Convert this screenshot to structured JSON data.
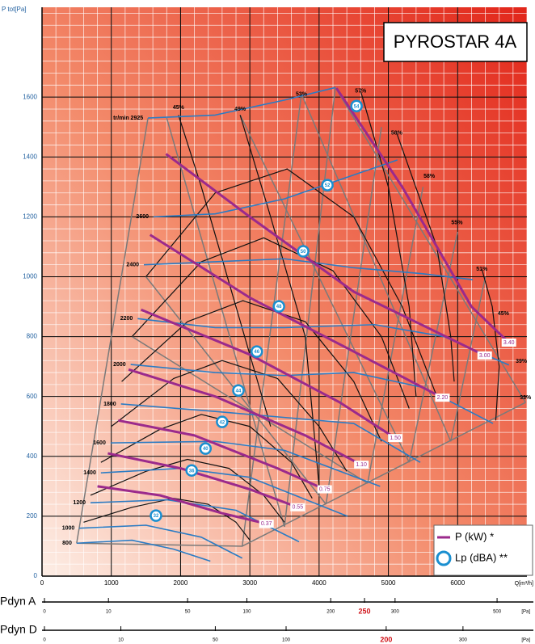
{
  "chart_data": {
    "type": "line",
    "title": "PYROSTAR 4A",
    "y_label": "P tot[Pa]",
    "x_label": "Q[m³/h]",
    "xlim": [
      0,
      7000
    ],
    "ylim": [
      0,
      1900
    ],
    "xticks": [
      0,
      1000,
      2000,
      3000,
      4000,
      5000,
      6000
    ],
    "yticks": [
      0,
      200,
      400,
      600,
      800,
      1000,
      1200,
      1400,
      1600
    ],
    "grid": true,
    "series": [
      {
        "name": "tr/min 2925",
        "color": "#2b7cc4",
        "x": [
          1530,
          2500,
          3500,
          4235
        ],
        "values": [
          1530,
          1540,
          1590,
          1632
        ]
      },
      {
        "name": "2600",
        "color": "#2b7cc4",
        "x": [
          1610,
          2500,
          3500,
          4500,
          5130
        ],
        "values": [
          1200,
          1210,
          1260,
          1340,
          1390
        ]
      },
      {
        "name": "2400",
        "color": "#2b7cc4",
        "x": [
          1470,
          2500,
          3500,
          4500,
          5500,
          6220
        ],
        "values": [
          1040,
          1050,
          1060,
          1030,
          1010,
          990
        ]
      },
      {
        "name": "2200",
        "color": "#2b7cc4",
        "x": [
          1380,
          2500,
          3500,
          4800,
          5800,
          6740
        ],
        "values": [
          860,
          830,
          830,
          840,
          800,
          705
        ]
      },
      {
        "name": "2000",
        "color": "#2b7cc4",
        "x": [
          1280,
          2500,
          3500,
          4500,
          5500,
          6510
        ],
        "values": [
          707,
          680,
          670,
          680,
          630,
          510
        ]
      },
      {
        "name": "1800",
        "color": "#2b7cc4",
        "x": [
          1140,
          2500,
          3500,
          4500,
          5460
        ],
        "values": [
          575,
          550,
          530,
          510,
          380
        ]
      },
      {
        "name": "1600",
        "color": "#2b7cc4",
        "x": [
          990,
          2500,
          3500,
          4880
        ],
        "values": [
          445,
          450,
          420,
          300
        ]
      },
      {
        "name": "1400",
        "color": "#2b7cc4",
        "x": [
          850,
          2000,
          3000,
          4410
        ],
        "values": [
          345,
          360,
          330,
          200
        ]
      },
      {
        "name": "1200",
        "color": "#2b7cc4",
        "x": [
          700,
          1800,
          2800,
          3710
        ],
        "values": [
          245,
          255,
          220,
          115
        ]
      },
      {
        "name": "1000",
        "color": "#2b7cc4",
        "x": [
          540,
          1500,
          2300,
          2890
        ],
        "values": [
          160,
          170,
          130,
          60
        ]
      },
      {
        "name": "800",
        "color": "#2b7cc4",
        "x": [
          500,
          1300,
          1900,
          2430
        ],
        "values": [
          110,
          120,
          90,
          50
        ]
      }
    ],
    "power_legend": "P (kW) *",
    "power": [
      {
        "name": "0.37",
        "color": "#9b2a8c",
        "x": [
          800,
          1700,
          2600,
          3240
        ],
        "values": [
          300,
          270,
          210,
          175
        ]
      },
      {
        "name": "0.55",
        "color": "#9b2a8c",
        "x": [
          950,
          2000,
          3000,
          3690
        ],
        "values": [
          410,
          360,
          290,
          230
        ]
      },
      {
        "name": "0.75",
        "color": "#9b2a8c",
        "x": [
          1100,
          2200,
          3400,
          4080
        ],
        "values": [
          520,
          470,
          360,
          290
        ]
      },
      {
        "name": "1.10",
        "color": "#9b2a8c",
        "x": [
          1250,
          2500,
          3800,
          4610
        ],
        "values": [
          690,
          600,
          470,
          372
        ]
      },
      {
        "name": "1.50",
        "color": "#9b2a8c",
        "x": [
          1430,
          3000,
          4300,
          5100
        ],
        "values": [
          890,
          740,
          580,
          461
        ]
      },
      {
        "name": "2.20",
        "color": "#9b2a8c",
        "x": [
          1560,
          3000,
          4500,
          5780
        ],
        "values": [
          1140,
          930,
          750,
          596
        ]
      },
      {
        "name": "3.00",
        "color": "#9b2a8c",
        "x": [
          1790,
          3000,
          4500,
          6390
        ],
        "values": [
          1410,
          1200,
          950,
          737
        ]
      },
      {
        "name": "3.40",
        "color": "#9b2a8c",
        "x": [
          4250,
          5200,
          6200,
          6740
        ],
        "values": [
          1630,
          1300,
          900,
          780
        ]
      }
    ],
    "lp": {
      "name": "Lp (dBA) **",
      "color": "#1a8fd0",
      "x": [
        1645,
        2160,
        2360,
        2600,
        2835,
        3100,
        3420,
        3770,
        4120,
        4540
      ],
      "y": [
        202,
        353,
        426,
        515,
        620,
        750,
        901,
        1085,
        1306,
        1570
      ],
      "levels": [
        32,
        36,
        40,
        42,
        44,
        46,
        48,
        50,
        52,
        54
      ]
    },
    "efficiency": {
      "x": [
        1970,
        2860,
        3745,
        4600,
        5120,
        5590,
        5990,
        6350,
        6660,
        6920,
        6980
      ],
      "y": [
        1565,
        1560,
        1610,
        1620,
        1480,
        1335,
        1180,
        1025,
        877,
        718,
        596
      ],
      "labels": [
        "45%",
        "49%",
        "53%",
        "57%",
        "58%",
        "58%",
        "55%",
        "51%",
        "45%",
        "39%",
        "33%"
      ]
    },
    "curves": [
      {
        "x": [
          1500,
          2500,
          3540,
          4500,
          5200,
          5700
        ],
        "y": [
          1000,
          1280,
          1360,
          1200,
          900,
          600
        ]
      },
      {
        "x": [
          1300,
          2300,
          3200,
          4200,
          4900,
          5300
        ],
        "y": [
          800,
          1050,
          1130,
          1020,
          800,
          560
        ]
      },
      {
        "x": [
          1150,
          2100,
          2900,
          3800,
          4500,
          4900
        ],
        "y": [
          650,
          850,
          920,
          850,
          650,
          450
        ]
      },
      {
        "x": [
          1000,
          1900,
          2600,
          3400,
          4000,
          4400
        ],
        "y": [
          500,
          660,
          720,
          660,
          500,
          350
        ]
      },
      {
        "x": [
          850,
          1700,
          2300,
          3000,
          3600,
          3900
        ],
        "y": [
          380,
          490,
          540,
          500,
          380,
          260
        ]
      },
      {
        "x": [
          700,
          1500,
          2100,
          2700,
          3200,
          3500
        ],
        "y": [
          270,
          350,
          390,
          360,
          270,
          180
        ]
      },
      {
        "x": [
          600,
          1300,
          1900,
          2400,
          2800,
          3000
        ],
        "y": [
          180,
          230,
          260,
          240,
          180,
          120
        ]
      },
      {
        "x": [
          1970,
          2300,
          2800,
          3300
        ],
        "y": [
          1540,
          1300,
          900,
          500
        ]
      },
      {
        "x": [
          2860,
          3300,
          3800,
          4000
        ],
        "y": [
          1540,
          1200,
          800,
          300
        ]
      },
      {
        "x": [
          4600,
          5000,
          5300,
          5400
        ],
        "y": [
          1620,
          1300,
          900,
          600
        ]
      },
      {
        "x": [
          5120,
          5700,
          5900,
          5950
        ],
        "y": [
          1480,
          1100,
          800,
          650
        ]
      },
      {
        "x": [
          6350,
          6500,
          6600,
          6550
        ],
        "y": [
          1025,
          900,
          700,
          520
        ]
      }
    ],
    "gray_lines": [
      {
        "x": [
          500,
          1530
        ],
        "y": [
          110,
          1530
        ]
      },
      {
        "x": [
          500,
          2890,
          6980
        ],
        "y": [
          110,
          100,
          580
        ]
      },
      {
        "x": [
          4235,
          6980
        ],
        "y": [
          1632,
          580
        ]
      },
      {
        "x": [
          2890,
          3745
        ],
        "y": [
          100,
          1610
        ]
      },
      {
        "x": [
          3500,
          4235
        ],
        "y": [
          165,
          1632
        ]
      },
      {
        "x": [
          4100,
          4900
        ],
        "y": [
          240,
          1500
        ]
      },
      {
        "x": [
          4700,
          5500
        ],
        "y": [
          310,
          1300
        ]
      },
      {
        "x": [
          5300,
          6000
        ],
        "y": [
          380,
          1150
        ]
      },
      {
        "x": [
          5900,
          6400
        ],
        "y": [
          450,
          1000
        ]
      },
      {
        "x": [
          1800,
          3500
        ],
        "y": [
          1530,
          165
        ]
      },
      {
        "x": [
          1500,
          4100
        ],
        "y": [
          1000,
          240
        ]
      },
      {
        "x": [
          1300,
          4700
        ],
        "y": [
          800,
          310
        ]
      },
      {
        "x": [
          2860,
          5300
        ],
        "y": [
          1540,
          380
        ]
      },
      {
        "x": [
          3745,
          5900
        ],
        "y": [
          1610,
          450
        ]
      }
    ],
    "pdyn": [
      {
        "label": "Pdyn A",
        "scale": "sqrt",
        "xlim": [
          0,
          570
        ],
        "ticks": [
          0,
          10,
          50,
          100,
          200,
          250,
          300,
          500
        ],
        "unit": "[Pa]",
        "highlight": 250
      },
      {
        "label": "Pdyn D",
        "scale": "sqrt",
        "xlim": [
          0,
          400
        ],
        "ticks": [
          0,
          10,
          50,
          100,
          200,
          300
        ],
        "unit": "[Pa]",
        "highlight": 200
      }
    ]
  }
}
